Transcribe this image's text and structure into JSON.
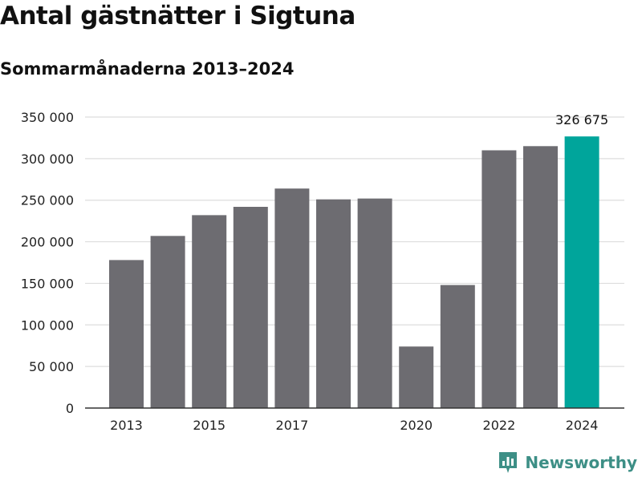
{
  "header": {
    "title": "Antal gästnätter i Sigtuna",
    "subtitle": "Sommarmånaderna 2013–2024"
  },
  "brand": {
    "name": "Newsworthy",
    "color": "#3d8f86",
    "icon": "newsworthy-logo-icon"
  },
  "colors": {
    "bar": "#6d6c71",
    "highlight": "#00a59b",
    "grid": "#dddddd",
    "axis": "#333333"
  },
  "chart_data": {
    "type": "bar",
    "categories": [
      "2013",
      "2014",
      "2015",
      "2016",
      "2017",
      "2018",
      "2019",
      "2020",
      "2021",
      "2022",
      "2023",
      "2024"
    ],
    "values": [
      178000,
      207000,
      232000,
      242000,
      264000,
      251000,
      252000,
      74000,
      148000,
      310000,
      315000,
      326675
    ],
    "x_tick_labels": [
      "2013",
      "",
      "2015",
      "",
      "2017",
      "",
      "",
      "2020",
      "",
      "2022",
      "",
      "2024"
    ],
    "highlight_index": 11,
    "data_labels": [
      {
        "index": 11,
        "text": "326 675"
      }
    ],
    "ylim": [
      0,
      350000
    ],
    "y_ticks": [
      0,
      50000,
      100000,
      150000,
      200000,
      250000,
      300000,
      350000
    ],
    "y_tick_labels": [
      "0",
      "50 000",
      "100 000",
      "150 000",
      "200 000",
      "250 000",
      "300 000",
      "350 000"
    ],
    "grid": true,
    "title": "Antal gästnätter i Sigtuna",
    "subtitle": "Sommarmånaderna 2013–2024",
    "xlabel": "",
    "ylabel": ""
  }
}
